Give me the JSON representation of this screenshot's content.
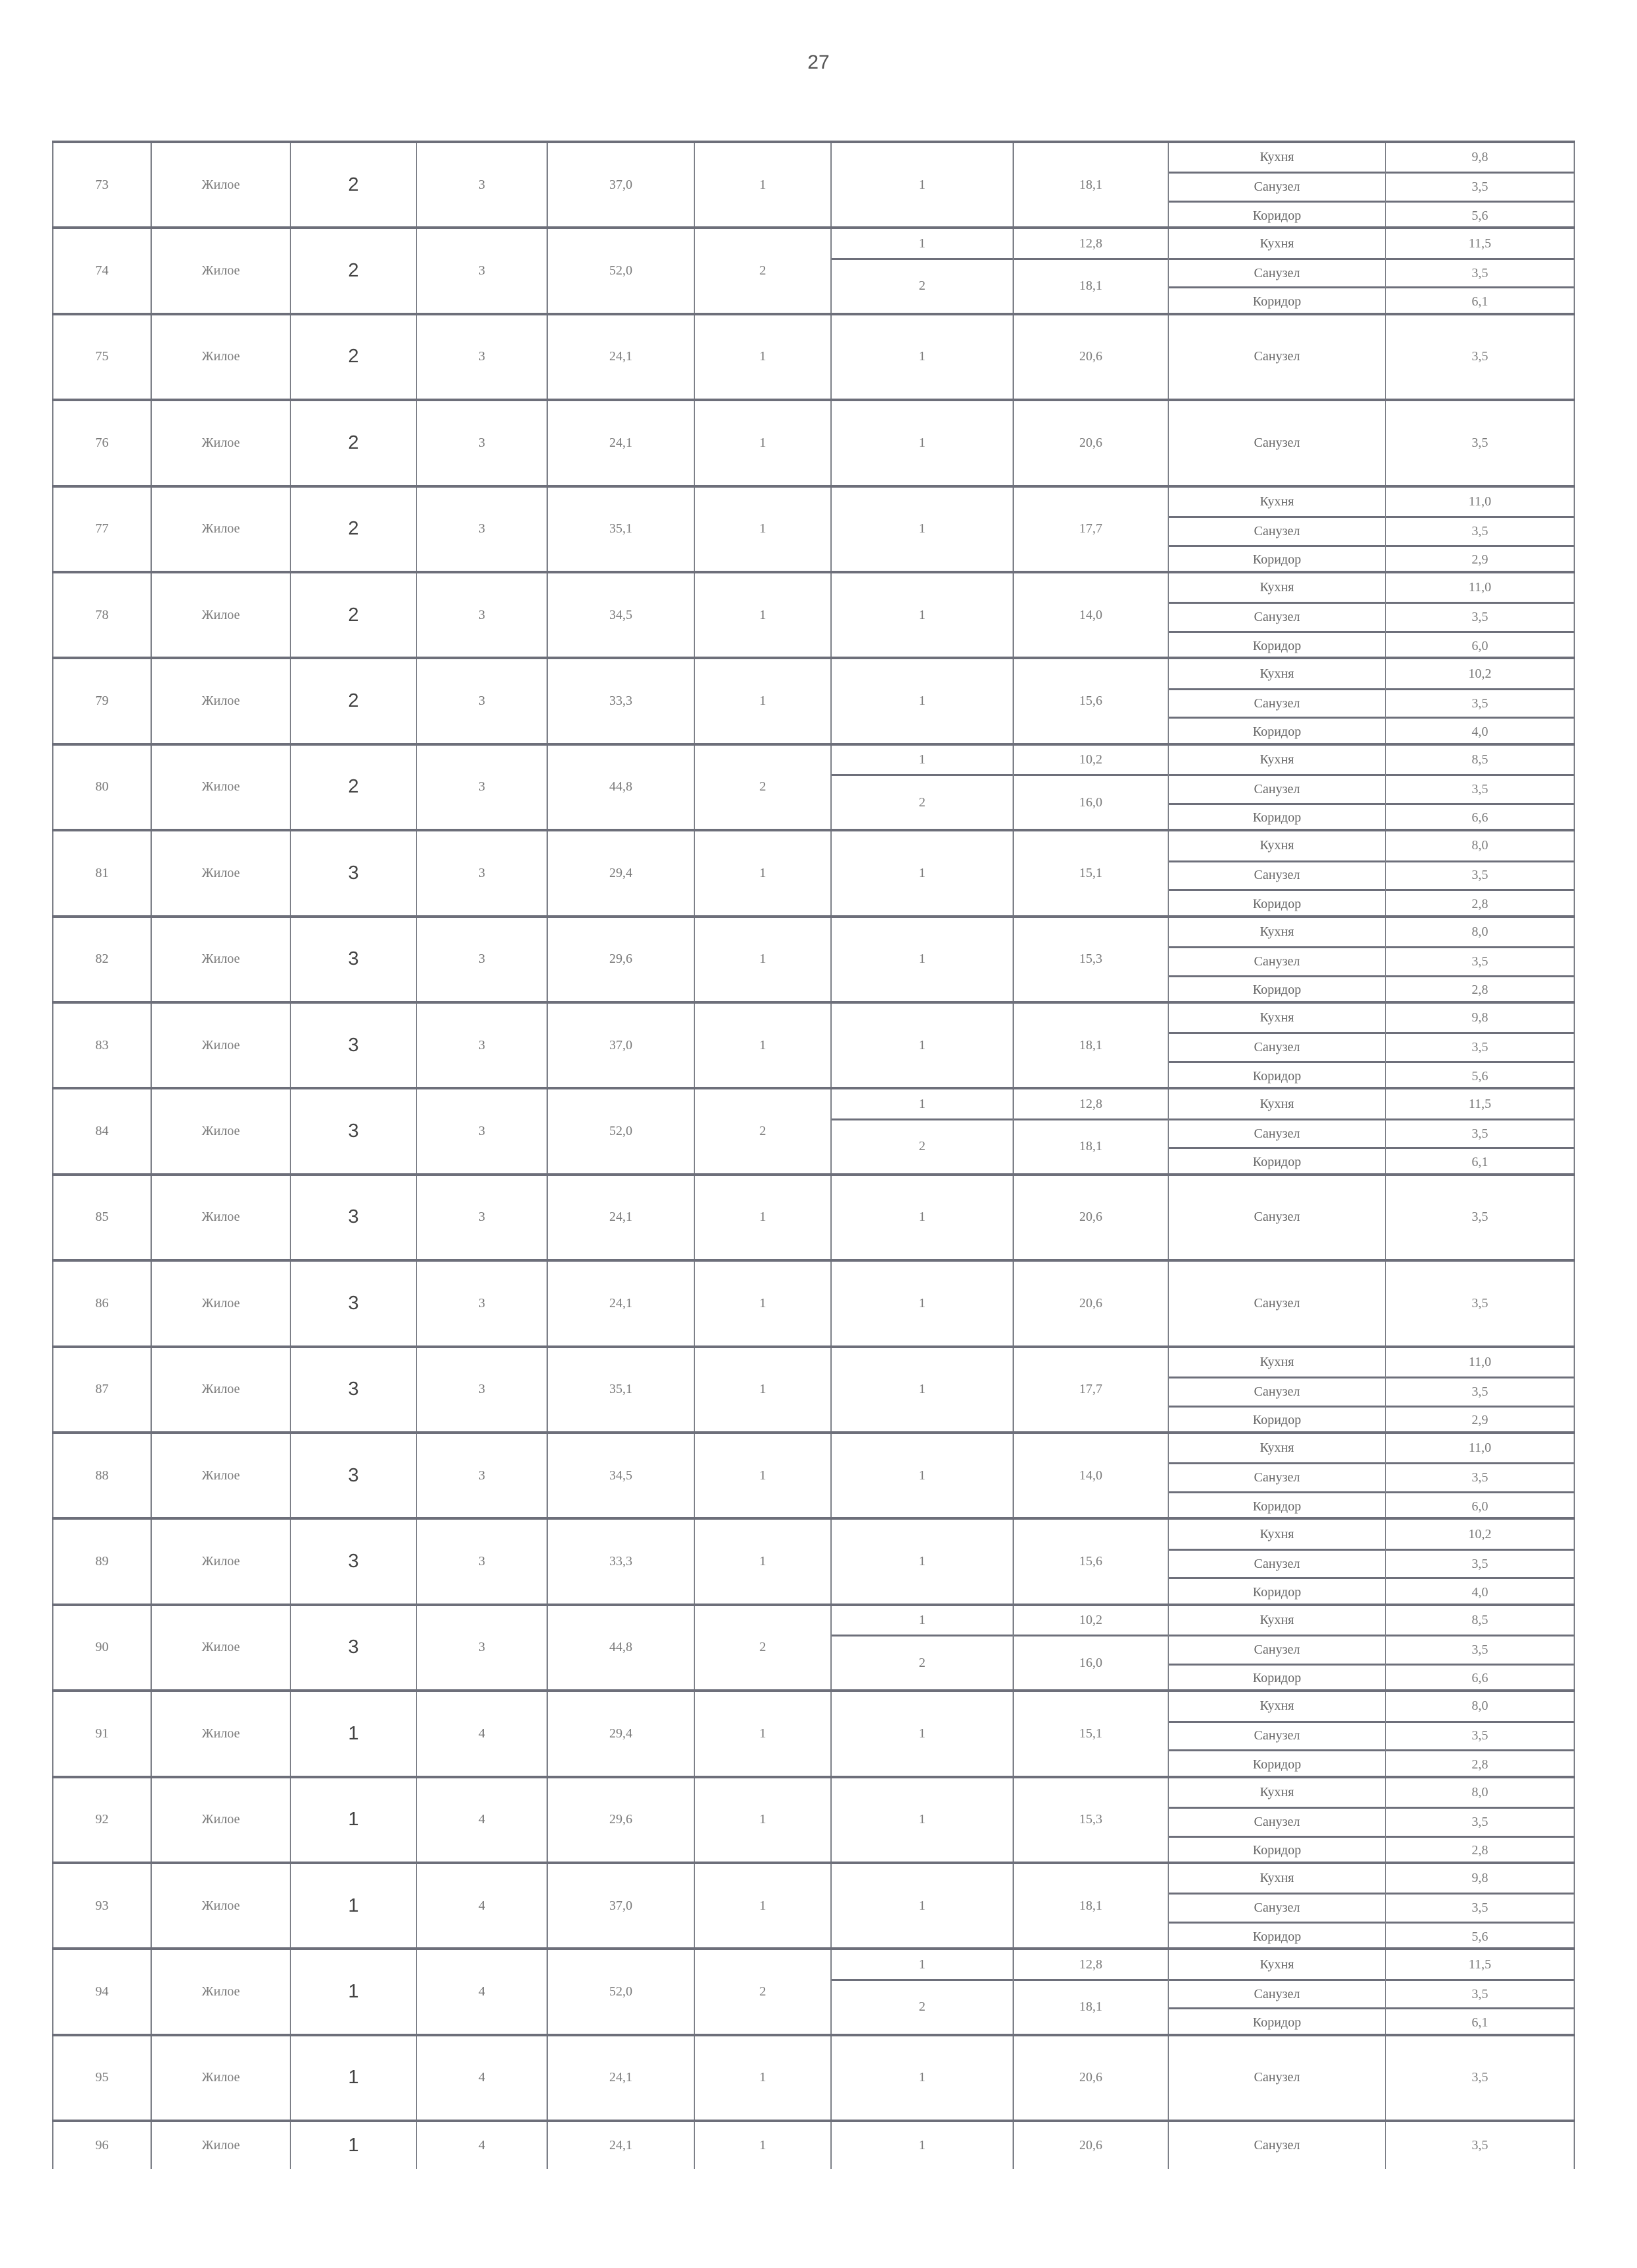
{
  "page_number": "27",
  "rows": [
    {
      "no": "73",
      "type": "Жилое",
      "section": "2",
      "floor": "3",
      "total": "37,0",
      "rooms": "1",
      "living": [
        [
          "1",
          "18,1"
        ]
      ],
      "aux": [
        [
          "Кухня",
          "9,8"
        ],
        [
          "Санузел",
          "3,5"
        ],
        [
          "Коридор",
          "5,6"
        ]
      ]
    },
    {
      "no": "74",
      "type": "Жилое",
      "section": "2",
      "floor": "3",
      "total": "52,0",
      "rooms": "2",
      "living": [
        [
          "1",
          "12,8"
        ],
        [
          "2",
          "18,1"
        ]
      ],
      "aux": [
        [
          "Кухня",
          "11,5"
        ],
        [
          "Санузел",
          "3,5"
        ],
        [
          "Коридор",
          "6,1"
        ]
      ]
    },
    {
      "no": "75",
      "type": "Жилое",
      "section": "2",
      "floor": "3",
      "total": "24,1",
      "rooms": "1",
      "living": [
        [
          "1",
          "20,6"
        ]
      ],
      "aux": [
        [
          "Санузел",
          "3,5"
        ]
      ]
    },
    {
      "no": "76",
      "type": "Жилое",
      "section": "2",
      "floor": "3",
      "total": "24,1",
      "rooms": "1",
      "living": [
        [
          "1",
          "20,6"
        ]
      ],
      "aux": [
        [
          "Санузел",
          "3,5"
        ]
      ]
    },
    {
      "no": "77",
      "type": "Жилое",
      "section": "2",
      "floor": "3",
      "total": "35,1",
      "rooms": "1",
      "living": [
        [
          "1",
          "17,7"
        ]
      ],
      "aux": [
        [
          "Кухня",
          "11,0"
        ],
        [
          "Санузел",
          "3,5"
        ],
        [
          "Коридор",
          "2,9"
        ]
      ]
    },
    {
      "no": "78",
      "type": "Жилое",
      "section": "2",
      "floor": "3",
      "total": "34,5",
      "rooms": "1",
      "living": [
        [
          "1",
          "14,0"
        ]
      ],
      "aux": [
        [
          "Кухня",
          "11,0"
        ],
        [
          "Санузел",
          "3,5"
        ],
        [
          "Коридор",
          "6,0"
        ]
      ]
    },
    {
      "no": "79",
      "type": "Жилое",
      "section": "2",
      "floor": "3",
      "total": "33,3",
      "rooms": "1",
      "living": [
        [
          "1",
          "15,6"
        ]
      ],
      "aux": [
        [
          "Кухня",
          "10,2"
        ],
        [
          "Санузел",
          "3,5"
        ],
        [
          "Коридор",
          "4,0"
        ]
      ]
    },
    {
      "no": "80",
      "type": "Жилое",
      "section": "2",
      "floor": "3",
      "total": "44,8",
      "rooms": "2",
      "living": [
        [
          "1",
          "10,2"
        ],
        [
          "2",
          "16,0"
        ]
      ],
      "aux": [
        [
          "Кухня",
          "8,5"
        ],
        [
          "Санузел",
          "3,5"
        ],
        [
          "Коридор",
          "6,6"
        ]
      ]
    },
    {
      "no": "81",
      "type": "Жилое",
      "section": "3",
      "floor": "3",
      "total": "29,4",
      "rooms": "1",
      "living": [
        [
          "1",
          "15,1"
        ]
      ],
      "aux": [
        [
          "Кухня",
          "8,0"
        ],
        [
          "Санузел",
          "3,5"
        ],
        [
          "Коридор",
          "2,8"
        ]
      ]
    },
    {
      "no": "82",
      "type": "Жилое",
      "section": "3",
      "floor": "3",
      "total": "29,6",
      "rooms": "1",
      "living": [
        [
          "1",
          "15,3"
        ]
      ],
      "aux": [
        [
          "Кухня",
          "8,0"
        ],
        [
          "Санузел",
          "3,5"
        ],
        [
          "Коридор",
          "2,8"
        ]
      ]
    },
    {
      "no": "83",
      "type": "Жилое",
      "section": "3",
      "floor": "3",
      "total": "37,0",
      "rooms": "1",
      "living": [
        [
          "1",
          "18,1"
        ]
      ],
      "aux": [
        [
          "Кухня",
          "9,8"
        ],
        [
          "Санузел",
          "3,5"
        ],
        [
          "Коридор",
          "5,6"
        ]
      ]
    },
    {
      "no": "84",
      "type": "Жилое",
      "section": "3",
      "floor": "3",
      "total": "52,0",
      "rooms": "2",
      "living": [
        [
          "1",
          "12,8"
        ],
        [
          "2",
          "18,1"
        ]
      ],
      "aux": [
        [
          "Кухня",
          "11,5"
        ],
        [
          "Санузел",
          "3,5"
        ],
        [
          "Коридор",
          "6,1"
        ]
      ]
    },
    {
      "no": "85",
      "type": "Жилое",
      "section": "3",
      "floor": "3",
      "total": "24,1",
      "rooms": "1",
      "living": [
        [
          "1",
          "20,6"
        ]
      ],
      "aux": [
        [
          "Санузел",
          "3,5"
        ]
      ]
    },
    {
      "no": "86",
      "type": "Жилое",
      "section": "3",
      "floor": "3",
      "total": "24,1",
      "rooms": "1",
      "living": [
        [
          "1",
          "20,6"
        ]
      ],
      "aux": [
        [
          "Санузел",
          "3,5"
        ]
      ]
    },
    {
      "no": "87",
      "type": "Жилое",
      "section": "3",
      "floor": "3",
      "total": "35,1",
      "rooms": "1",
      "living": [
        [
          "1",
          "17,7"
        ]
      ],
      "aux": [
        [
          "Кухня",
          "11,0"
        ],
        [
          "Санузел",
          "3,5"
        ],
        [
          "Коридор",
          "2,9"
        ]
      ]
    },
    {
      "no": "88",
      "type": "Жилое",
      "section": "3",
      "floor": "3",
      "total": "34,5",
      "rooms": "1",
      "living": [
        [
          "1",
          "14,0"
        ]
      ],
      "aux": [
        [
          "Кухня",
          "11,0"
        ],
        [
          "Санузел",
          "3,5"
        ],
        [
          "Коридор",
          "6,0"
        ]
      ]
    },
    {
      "no": "89",
      "type": "Жилое",
      "section": "3",
      "floor": "3",
      "total": "33,3",
      "rooms": "1",
      "living": [
        [
          "1",
          "15,6"
        ]
      ],
      "aux": [
        [
          "Кухня",
          "10,2"
        ],
        [
          "Санузел",
          "3,5"
        ],
        [
          "Коридор",
          "4,0"
        ]
      ]
    },
    {
      "no": "90",
      "type": "Жилое",
      "section": "3",
      "floor": "3",
      "total": "44,8",
      "rooms": "2",
      "living": [
        [
          "1",
          "10,2"
        ],
        [
          "2",
          "16,0"
        ]
      ],
      "aux": [
        [
          "Кухня",
          "8,5"
        ],
        [
          "Санузел",
          "3,5"
        ],
        [
          "Коридор",
          "6,6"
        ]
      ]
    },
    {
      "no": "91",
      "type": "Жилое",
      "section": "1",
      "floor": "4",
      "total": "29,4",
      "rooms": "1",
      "living": [
        [
          "1",
          "15,1"
        ]
      ],
      "aux": [
        [
          "Кухня",
          "8,0"
        ],
        [
          "Санузел",
          "3,5"
        ],
        [
          "Коридор",
          "2,8"
        ]
      ]
    },
    {
      "no": "92",
      "type": "Жилое",
      "section": "1",
      "floor": "4",
      "total": "29,6",
      "rooms": "1",
      "living": [
        [
          "1",
          "15,3"
        ]
      ],
      "aux": [
        [
          "Кухня",
          "8,0"
        ],
        [
          "Санузел",
          "3,5"
        ],
        [
          "Коридор",
          "2,8"
        ]
      ]
    },
    {
      "no": "93",
      "type": "Жилое",
      "section": "1",
      "floor": "4",
      "total": "37,0",
      "rooms": "1",
      "living": [
        [
          "1",
          "18,1"
        ]
      ],
      "aux": [
        [
          "Кухня",
          "9,8"
        ],
        [
          "Санузел",
          "3,5"
        ],
        [
          "Коридор",
          "5,6"
        ]
      ]
    },
    {
      "no": "94",
      "type": "Жилое",
      "section": "1",
      "floor": "4",
      "total": "52,0",
      "rooms": "2",
      "living": [
        [
          "1",
          "12,8"
        ],
        [
          "2",
          "18,1"
        ]
      ],
      "aux": [
        [
          "Кухня",
          "11,5"
        ],
        [
          "Санузел",
          "3,5"
        ],
        [
          "Коридор",
          "6,1"
        ]
      ]
    },
    {
      "no": "95",
      "type": "Жилое",
      "section": "1",
      "floor": "4",
      "total": "24,1",
      "rooms": "1",
      "living": [
        [
          "1",
          "20,6"
        ]
      ],
      "aux": [
        [
          "Санузел",
          "3,5"
        ]
      ]
    },
    {
      "no": "96",
      "type": "Жилое",
      "section": "1",
      "floor": "4",
      "total": "24,1",
      "rooms": "1",
      "living": [
        [
          "1",
          "20,6"
        ]
      ],
      "aux": [
        [
          "Санузел",
          "3,5"
        ]
      ]
    }
  ]
}
